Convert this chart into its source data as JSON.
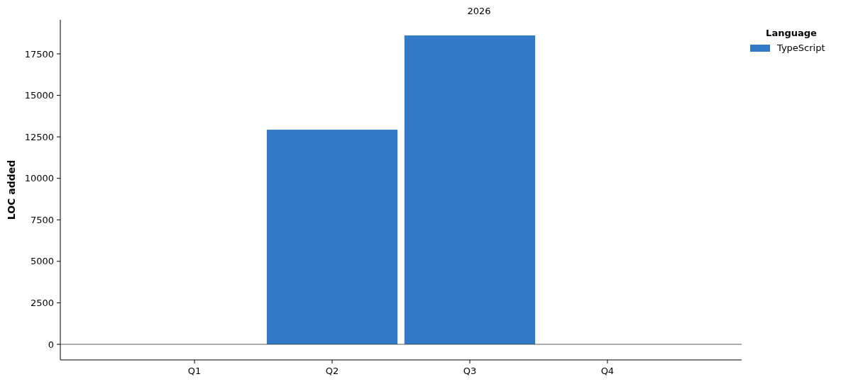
{
  "chart_data": {
    "type": "bar",
    "title": "2026",
    "ylabel": "LOC added",
    "legend_title": "Language",
    "categories": [
      "Q1",
      "Q2",
      "Q3",
      "Q4"
    ],
    "series": [
      {
        "name": "TypeScript",
        "color": "#3279c7",
        "values": [
          null,
          12930,
          18610,
          null
        ]
      }
    ],
    "ylim": [
      -940,
      19550
    ],
    "yticks": [
      0,
      2500,
      5000,
      7500,
      10000,
      12500,
      15000,
      17500
    ],
    "ref_lines": [
      {
        "axis": "y",
        "value": 0,
        "color": "#333333"
      }
    ],
    "grid": false,
    "legend": "top right"
  }
}
